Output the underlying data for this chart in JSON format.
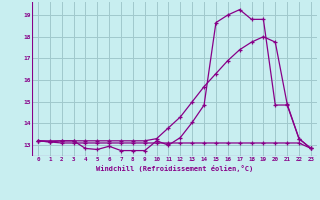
{
  "xlabel": "Windchill (Refroidissement éolien,°C)",
  "bg_color": "#c8eef0",
  "grid_color": "#a0c8cc",
  "line_color": "#880088",
  "x_ticks": [
    0,
    1,
    2,
    3,
    4,
    5,
    6,
    7,
    8,
    9,
    10,
    11,
    12,
    13,
    14,
    15,
    16,
    17,
    18,
    19,
    20,
    21,
    22,
    23
  ],
  "y_ticks": [
    13,
    14,
    15,
    16,
    17,
    18,
    19
  ],
  "ylim": [
    12.5,
    19.6
  ],
  "xlim": [
    -0.5,
    23.5
  ],
  "line1_x": [
    0,
    1,
    2,
    3,
    4,
    5,
    6,
    7,
    8,
    9,
    10,
    11,
    12,
    13,
    14,
    15,
    16,
    17,
    18,
    19,
    20,
    21,
    22,
    23
  ],
  "line1_y": [
    13.2,
    13.15,
    13.1,
    13.1,
    13.1,
    13.1,
    13.1,
    13.1,
    13.1,
    13.1,
    13.1,
    13.1,
    13.1,
    13.1,
    13.1,
    13.1,
    13.1,
    13.1,
    13.1,
    13.1,
    13.1,
    13.1,
    13.1,
    12.85
  ],
  "line2_x": [
    0,
    1,
    2,
    3,
    4,
    5,
    6,
    7,
    8,
    9,
    10,
    11,
    12,
    13,
    14,
    15,
    16,
    17,
    18,
    19,
    20,
    21,
    22,
    23
  ],
  "line2_y": [
    13.2,
    13.2,
    13.2,
    13.2,
    13.2,
    13.2,
    13.2,
    13.2,
    13.2,
    13.2,
    13.3,
    13.8,
    14.3,
    15.0,
    15.7,
    16.3,
    16.9,
    17.4,
    17.75,
    18.0,
    17.75,
    14.9,
    13.3,
    12.85
  ],
  "line3_x": [
    0,
    1,
    2,
    3,
    4,
    5,
    6,
    7,
    8,
    9,
    10,
    11,
    12,
    13,
    14,
    15,
    16,
    17,
    18,
    19,
    20,
    21,
    22,
    23
  ],
  "line3_y": [
    13.2,
    13.15,
    13.2,
    13.2,
    12.85,
    12.8,
    12.95,
    12.75,
    12.75,
    12.75,
    13.2,
    13.0,
    13.35,
    14.05,
    14.85,
    18.65,
    19.0,
    19.25,
    18.8,
    18.8,
    14.85,
    14.85,
    13.3,
    12.85
  ]
}
